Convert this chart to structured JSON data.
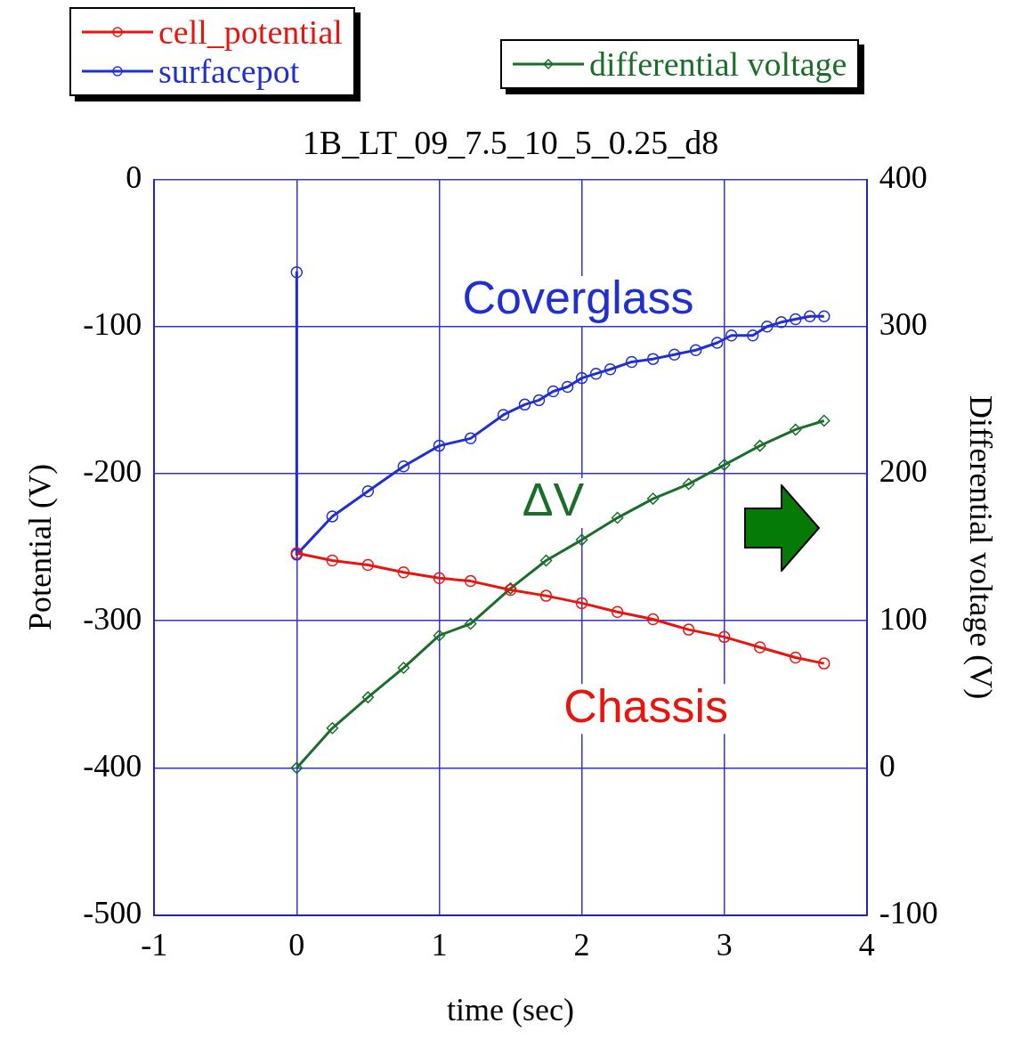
{
  "chart_data": {
    "type": "line",
    "title": "1B_LT_09_7.5_10_5_0.25_d8",
    "xlabel": "time (sec)",
    "ylabel": "Potential (V)",
    "y2label": "Differential voltage (V)",
    "xlim": [
      -1,
      4
    ],
    "xticks": [
      -1,
      0,
      1,
      2,
      3,
      4
    ],
    "ylim": [
      -500,
      0
    ],
    "yticks": [
      -500,
      -400,
      -300,
      -200,
      -100,
      0
    ],
    "y2lim": [
      -100,
      400
    ],
    "y2ticks": [
      -100,
      0,
      100,
      200,
      300,
      400
    ],
    "grid": true,
    "legend": "top",
    "line_style": "solid",
    "series": [
      {
        "name": "cell_potential",
        "color": "#e8150f",
        "marker": "circle",
        "x": [
          0,
          0.25,
          0.5,
          0.75,
          1.0,
          1.22,
          1.5,
          1.75,
          2.0,
          2.25,
          2.5,
          2.75,
          3.0,
          3.25,
          3.5,
          3.7
        ],
        "values": [
          -254,
          -259,
          -262,
          -267,
          -271,
          -273,
          -279,
          -283,
          -288,
          -294,
          -299,
          -306,
          -311,
          -318,
          -325,
          -329
        ]
      },
      {
        "name": "surfacepot",
        "color": "#1f2fd0",
        "marker": "circle",
        "x": [
          0,
          0,
          0.25,
          0.5,
          0.75,
          1.0,
          1.22,
          1.45,
          1.6,
          1.7,
          1.8,
          1.9,
          2.0,
          2.1,
          2.2,
          2.35,
          2.5,
          2.65,
          2.8,
          2.95,
          3.05,
          3.2,
          3.3,
          3.4,
          3.5,
          3.6,
          3.7
        ],
        "values": [
          -63,
          -255,
          -229,
          -212,
          -195,
          -181,
          -176,
          -160,
          -153,
          -150,
          -144,
          -141,
          -135,
          -132,
          -129,
          -124,
          -122,
          -119,
          -116,
          -111,
          -106,
          -106,
          -100,
          -97,
          -95,
          -93,
          -93
        ]
      },
      {
        "name": "differential voltage",
        "color": "#1a6e2a",
        "marker": "diamond",
        "axis": "y2",
        "x": [
          0,
          0.25,
          0.5,
          0.75,
          1.0,
          1.22,
          1.5,
          1.75,
          2.0,
          2.25,
          2.5,
          2.75,
          3.0,
          3.25,
          3.5,
          3.7
        ],
        "values": [
          0,
          27,
          48,
          68,
          90,
          98,
          122,
          141,
          155,
          170,
          183,
          193,
          206,
          219,
          230,
          236
        ]
      }
    ],
    "annotations": [
      "Chassis",
      "Coverglass",
      "ΔV"
    ]
  }
}
